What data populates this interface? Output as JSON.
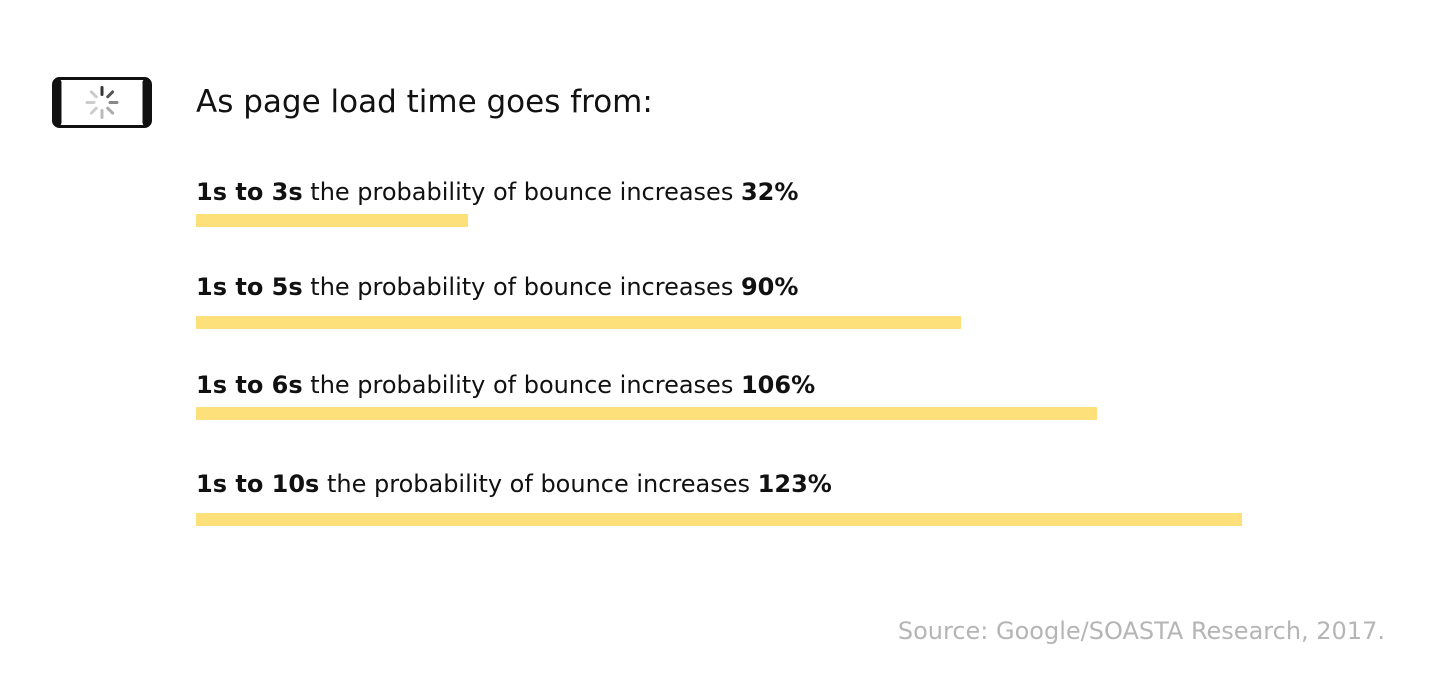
{
  "chart_data": {
    "type": "bar",
    "title": "As page load time goes from:",
    "categories": [
      "1s to 3s",
      "1s to 5s",
      "1s to 6s",
      "1s to 10s"
    ],
    "label_text": "the probability of bounce increases",
    "values": [
      32,
      90,
      106,
      123
    ],
    "value_labels": [
      "32%",
      "90%",
      "106%",
      "123%"
    ],
    "color": "#fde07a",
    "xlim": [
      0,
      123
    ],
    "source": "Source: Google/SOASTA Research, 2017."
  }
}
